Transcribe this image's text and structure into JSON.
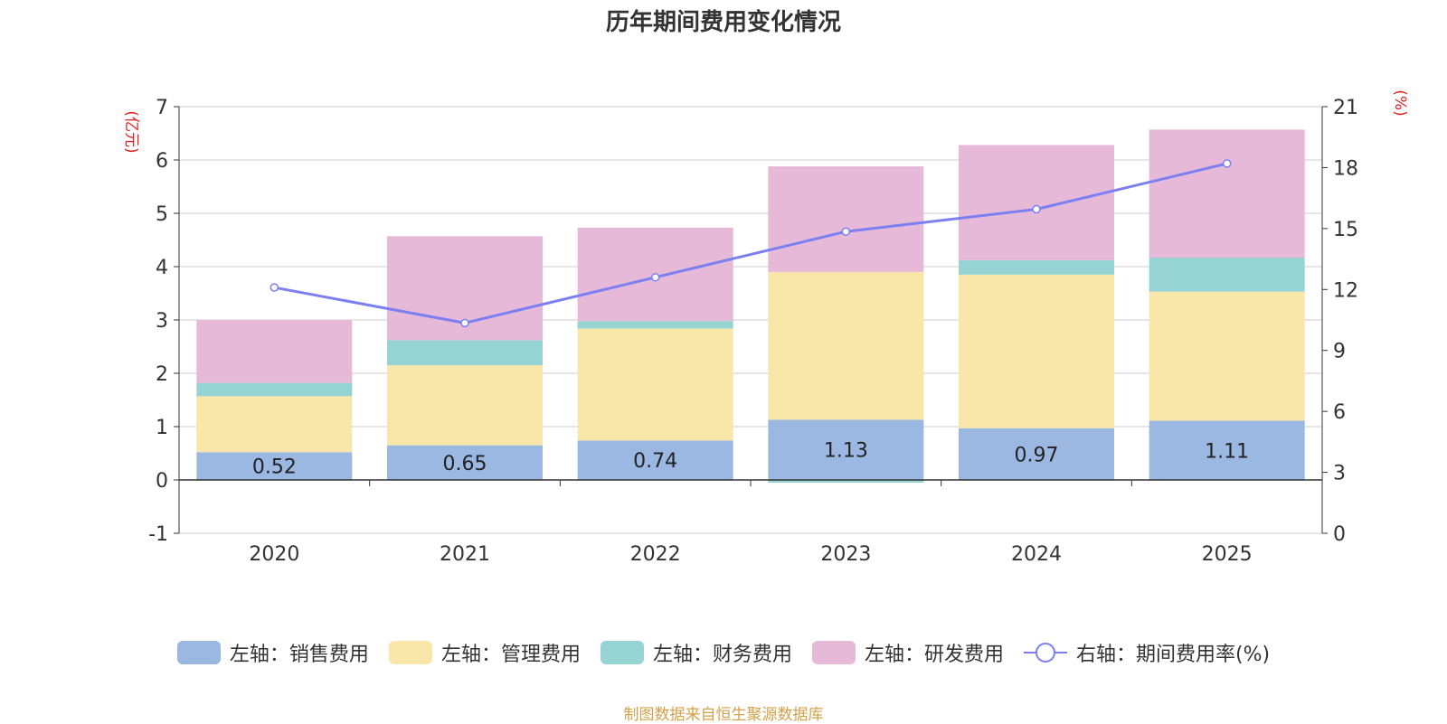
{
  "chart_data": {
    "type": "bar",
    "stacked": true,
    "title": "历年期间费用变化情况",
    "categories": [
      "2020",
      "2021",
      "2022",
      "2023",
      "2024",
      "2025"
    ],
    "left_axis": {
      "unit_label": "(亿元)",
      "ylim": [
        -1,
        7
      ],
      "ticks": [
        "7",
        "6",
        "5",
        "4",
        "3",
        "2",
        "1",
        "0",
        "-1"
      ]
    },
    "right_axis": {
      "unit_label": "(%)",
      "ylim": [
        0,
        21
      ],
      "ticks": [
        "21",
        "18",
        "15",
        "12",
        "9",
        "6",
        "3",
        "0"
      ]
    },
    "series": [
      {
        "name": "左轴：销售费用",
        "axis": "left",
        "color": "#9bb8e3",
        "values": [
          0.52,
          0.65,
          0.74,
          1.13,
          0.97,
          1.11
        ],
        "labels": [
          "0.52",
          "0.65",
          "0.74",
          "1.13",
          "0.97",
          "1.11"
        ]
      },
      {
        "name": "左轴：管理费用",
        "axis": "left",
        "color": "#f8e7a9",
        "values": [
          1.05,
          1.5,
          2.1,
          2.77,
          2.88,
          2.42
        ]
      },
      {
        "name": "左轴：财务费用",
        "axis": "left",
        "color": "#96d4d4",
        "values": [
          0.25,
          0.47,
          0.14,
          -0.05,
          0.27,
          0.64
        ]
      },
      {
        "name": "左轴：研发费用",
        "axis": "left",
        "color": "#e7b9d9",
        "values": [
          1.18,
          1.95,
          1.75,
          1.98,
          2.16,
          2.4
        ]
      },
      {
        "name": "右轴：期间费用率(%)",
        "axis": "right",
        "type": "line",
        "color": "#7b7ff0",
        "values": [
          12.1,
          10.35,
          12.6,
          14.85,
          15.95,
          18.2
        ]
      }
    ]
  },
  "footer": "制图数据来自恒生聚源数据库"
}
